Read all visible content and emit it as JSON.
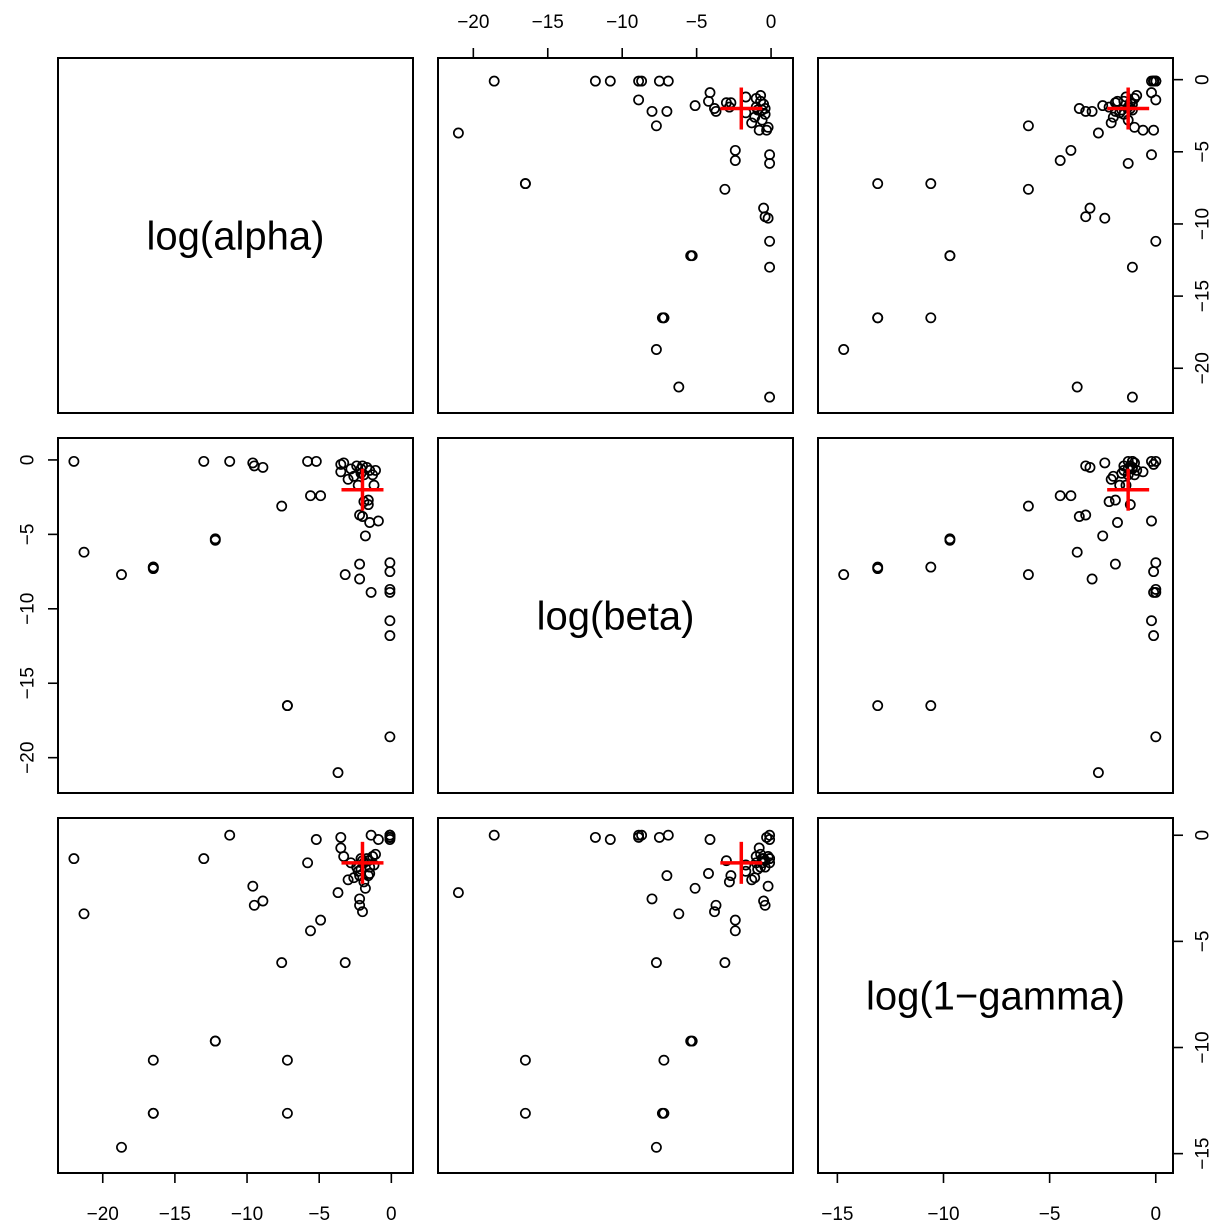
{
  "chart_data": {
    "type": "scatter",
    "variables": [
      "log(alpha)",
      "log(beta)",
      "log(1−gamma)"
    ],
    "axes": {
      "log(alpha)": {
        "ticks": [
          -20,
          -15,
          -10,
          -5,
          0
        ],
        "tick_labels": [
          "−20",
          "−15",
          "−10",
          "−5",
          "0"
        ],
        "range": [
          -22.2,
          0.6
        ]
      },
      "log(beta)": {
        "ticks": [
          -20,
          -15,
          -10,
          -5,
          0
        ],
        "tick_labels": [
          "−20",
          "−15",
          "−10",
          "−5",
          "0"
        ],
        "range": [
          -21.5,
          0.6
        ]
      },
      "log(1−gamma)": {
        "ticks": [
          -15,
          -10,
          -5,
          0
        ],
        "tick_labels": [
          "−15",
          "−10",
          "−5",
          "0"
        ],
        "range": [
          -15.3,
          0.2
        ]
      }
    },
    "points": [
      {
        "alpha": -22.0,
        "beta": -0.1,
        "gamma": -1.1
      },
      {
        "alpha": -21.3,
        "beta": -6.2,
        "gamma": -3.7
      },
      {
        "alpha": -18.7,
        "beta": -7.7,
        "gamma": -14.7
      },
      {
        "alpha": -16.5,
        "beta": -7.2,
        "gamma": -10.6
      },
      {
        "alpha": -16.5,
        "beta": -7.2,
        "gamma": -13.1
      },
      {
        "alpha": -16.5,
        "beta": -7.3,
        "gamma": -13.1
      },
      {
        "alpha": -13.0,
        "beta": -0.1,
        "gamma": -1.1
      },
      {
        "alpha": -12.2,
        "beta": -5.3,
        "gamma": -9.7
      },
      {
        "alpha": -12.2,
        "beta": -5.4,
        "gamma": -9.7
      },
      {
        "alpha": -11.2,
        "beta": -0.1,
        "gamma": 0.0
      },
      {
        "alpha": -9.6,
        "beta": -0.2,
        "gamma": -2.4
      },
      {
        "alpha": -9.5,
        "beta": -0.4,
        "gamma": -3.3
      },
      {
        "alpha": -8.9,
        "beta": -0.5,
        "gamma": -3.1
      },
      {
        "alpha": -7.6,
        "beta": -3.1,
        "gamma": -6.0
      },
      {
        "alpha": -7.2,
        "beta": -16.5,
        "gamma": -10.6
      },
      {
        "alpha": -7.2,
        "beta": -16.5,
        "gamma": -13.1
      },
      {
        "alpha": -5.8,
        "beta": -0.1,
        "gamma": -1.3
      },
      {
        "alpha": -5.6,
        "beta": -2.4,
        "gamma": -4.5
      },
      {
        "alpha": -5.2,
        "beta": -0.1,
        "gamma": -0.2
      },
      {
        "alpha": -4.9,
        "beta": -2.4,
        "gamma": -4.0
      },
      {
        "alpha": -3.7,
        "beta": -21.0,
        "gamma": -2.7
      },
      {
        "alpha": -3.5,
        "beta": -0.3,
        "gamma": -0.1
      },
      {
        "alpha": -3.5,
        "beta": -0.8,
        "gamma": -0.6
      },
      {
        "alpha": -3.3,
        "beta": -0.2,
        "gamma": -1.0
      },
      {
        "alpha": -3.2,
        "beta": -7.7,
        "gamma": -6.0
      },
      {
        "alpha": -3.0,
        "beta": -1.3,
        "gamma": -2.1
      },
      {
        "alpha": -2.8,
        "beta": -0.6,
        "gamma": -1.3
      },
      {
        "alpha": -2.6,
        "beta": -1.1,
        "gamma": -2.0
      },
      {
        "alpha": -2.4,
        "beta": -0.4,
        "gamma": -1.5
      },
      {
        "alpha": -2.3,
        "beta": -1.7,
        "gamma": -1.7
      },
      {
        "alpha": -2.2,
        "beta": -7.0,
        "gamma": -1.9
      },
      {
        "alpha": -2.2,
        "beta": -8.0,
        "gamma": -3.0
      },
      {
        "alpha": -2.2,
        "beta": -3.7,
        "gamma": -3.3
      },
      {
        "alpha": -2.1,
        "beta": -0.6,
        "gamma": -1.1
      },
      {
        "alpha": -2.1,
        "beta": -0.9,
        "gamma": -1.6
      },
      {
        "alpha": -2.0,
        "beta": -3.8,
        "gamma": -3.6
      },
      {
        "alpha": -2.0,
        "beta": -0.4,
        "gamma": -1.2
      },
      {
        "alpha": -1.9,
        "beta": -1.0,
        "gamma": -1.3
      },
      {
        "alpha": -1.9,
        "beta": -2.8,
        "gamma": -2.2
      },
      {
        "alpha": -1.8,
        "beta": -5.1,
        "gamma": -2.5
      },
      {
        "alpha": -1.7,
        "beta": -0.5,
        "gamma": -1.1
      },
      {
        "alpha": -1.6,
        "beta": -3.0,
        "gamma": -1.2
      },
      {
        "alpha": -1.6,
        "beta": -2.7,
        "gamma": -1.9
      },
      {
        "alpha": -1.5,
        "beta": -0.7,
        "gamma": -1.5
      },
      {
        "alpha": -1.5,
        "beta": -4.2,
        "gamma": -1.8
      },
      {
        "alpha": -1.4,
        "beta": -8.9,
        "gamma": 0.0
      },
      {
        "alpha": -1.3,
        "beta": -1.0,
        "gamma": -1.0
      },
      {
        "alpha": -1.2,
        "beta": -1.7,
        "gamma": -1.4
      },
      {
        "alpha": -1.1,
        "beta": -0.7,
        "gamma": -0.9
      },
      {
        "alpha": -0.9,
        "beta": -4.1,
        "gamma": -0.2
      },
      {
        "alpha": -0.1,
        "beta": -6.9,
        "gamma": 0.0
      },
      {
        "alpha": -0.1,
        "beta": -7.5,
        "gamma": -0.1
      },
      {
        "alpha": -0.1,
        "beta": -8.7,
        "gamma": 0.0
      },
      {
        "alpha": -0.1,
        "beta": -8.9,
        "gamma": -0.1
      },
      {
        "alpha": -0.1,
        "beta": -10.8,
        "gamma": -0.2
      },
      {
        "alpha": -0.1,
        "beta": -11.8,
        "gamma": -0.1
      },
      {
        "alpha": -0.1,
        "beta": -18.6,
        "gamma": 0.0
      }
    ],
    "highlight": {
      "alpha": -2.0,
      "beta": -2.0,
      "gamma": -1.3,
      "color": "#ff0000"
    },
    "point_color": "#000000",
    "grid": false,
    "legend": "none"
  }
}
